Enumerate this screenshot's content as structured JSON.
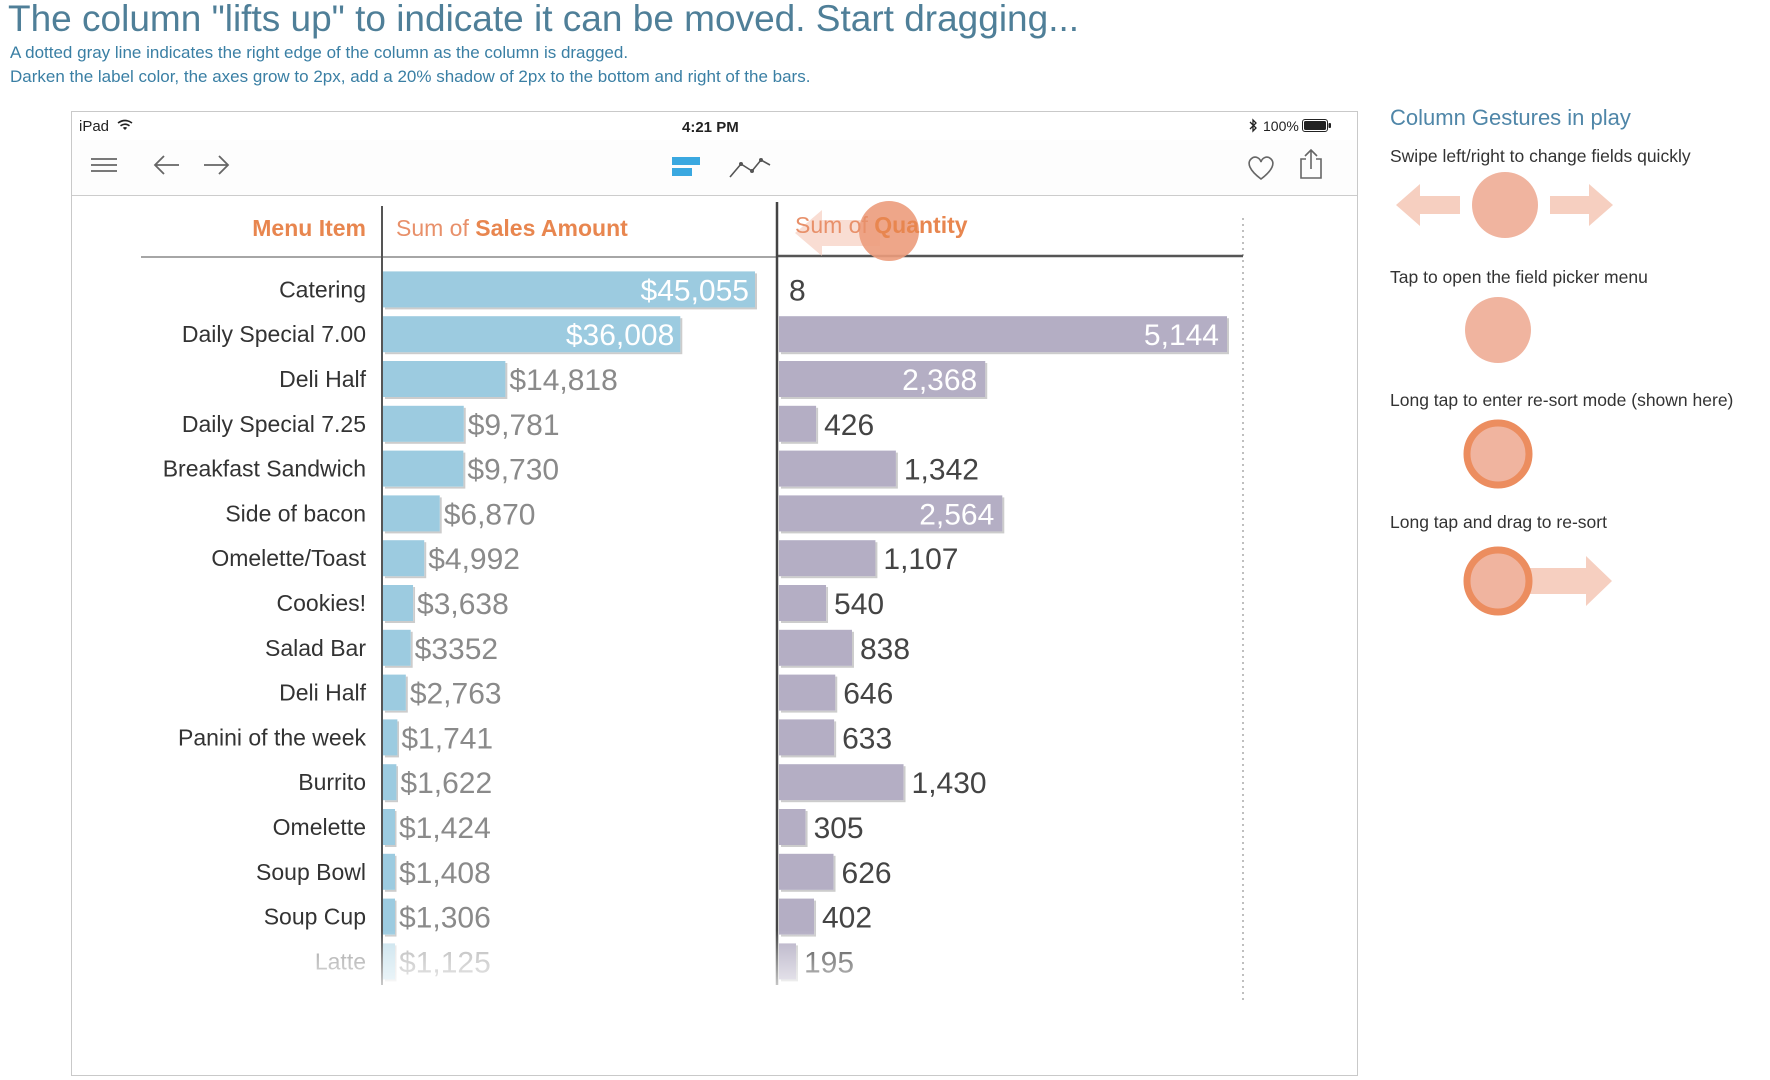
{
  "page": {
    "title": "The column \"lifts up\" to indicate it can be moved. Start dragging...",
    "subtitle_1": "A dotted gray line indicates the right edge of the column as the column is dragged.",
    "subtitle_2": "Darken the label color, the axes grow to 2px, add a 20% shadow of 2px to the bottom and right of the bars."
  },
  "statusbar": {
    "device": "iPad",
    "time": "4:21 PM",
    "battery": "100%"
  },
  "toolbar": {
    "icons": [
      "menu-icon",
      "back-arrow-icon",
      "forward-arrow-icon",
      "bar-chart-icon",
      "line-chart-icon",
      "heart-icon",
      "share-icon"
    ]
  },
  "chart_data": {
    "type": "table",
    "headers": {
      "dimension": "Menu Item",
      "measure1_prefix": "Sum of ",
      "measure1_name": "Sales Amount",
      "measure2_prefix": "Sum of ",
      "measure2_name": "Quantity"
    },
    "rows": [
      {
        "item": "Catering",
        "sales": 45055,
        "sales_label": "$45,055",
        "qty": 8,
        "qty_label": "8"
      },
      {
        "item": "Daily Special 7.00",
        "sales": 36008,
        "sales_label": "$36,008",
        "qty": 5144,
        "qty_label": "5,144"
      },
      {
        "item": "Deli Half",
        "sales": 14818,
        "sales_label": "$14,818",
        "qty": 2368,
        "qty_label": "2,368"
      },
      {
        "item": "Daily Special 7.25",
        "sales": 9781,
        "sales_label": "$9,781",
        "qty": 426,
        "qty_label": "426"
      },
      {
        "item": "Breakfast Sandwich",
        "sales": 9730,
        "sales_label": "$9,730",
        "qty": 1342,
        "qty_label": "1,342"
      },
      {
        "item": "Side of bacon",
        "sales": 6870,
        "sales_label": "$6,870",
        "qty": 2564,
        "qty_label": "2,564"
      },
      {
        "item": "Omelette/Toast",
        "sales": 4992,
        "sales_label": "$4,992",
        "qty": 1107,
        "qty_label": "1,107"
      },
      {
        "item": "Cookies!",
        "sales": 3638,
        "sales_label": "$3,638",
        "qty": 540,
        "qty_label": "540"
      },
      {
        "item": "Salad Bar",
        "sales": 3352,
        "sales_label": "$3352",
        "qty": 838,
        "qty_label": "838"
      },
      {
        "item": "Deli Half",
        "sales": 2763,
        "sales_label": "$2,763",
        "qty": 646,
        "qty_label": "646"
      },
      {
        "item": "Panini of the week",
        "sales": 1741,
        "sales_label": "$1,741",
        "qty": 633,
        "qty_label": "633"
      },
      {
        "item": "Burrito",
        "sales": 1622,
        "sales_label": "$1,622",
        "qty": 1430,
        "qty_label": "1,430"
      },
      {
        "item": "Omelette",
        "sales": 1424,
        "sales_label": "$1,424",
        "qty": 305,
        "qty_label": "305"
      },
      {
        "item": "Soup Bowl",
        "sales": 1408,
        "sales_label": "$1,408",
        "qty": 626,
        "qty_label": "626"
      },
      {
        "item": "Soup Cup",
        "sales": 1306,
        "sales_label": "$1,306",
        "qty": 402,
        "qty_label": "402"
      },
      {
        "item": "Latte",
        "sales": 1125,
        "sales_label": "$1,125",
        "qty": 195,
        "qty_label": "195"
      }
    ],
    "sales_max": 45055,
    "qty_max": 5144,
    "colors": {
      "sales_bar": "#9ccbe0",
      "qty_bar": "#b4aec4",
      "header_accent": "#e8864f",
      "header_text": "#e8906a"
    }
  },
  "gestures": {
    "title": "Column Gestures in play",
    "items": [
      {
        "label": "Swipe left/right to change fields quickly"
      },
      {
        "label": "Tap to open the field picker menu"
      },
      {
        "label": "Long tap to enter re-sort mode (shown here)"
      },
      {
        "label": "Long tap and drag to re-sort"
      }
    ],
    "colors": {
      "fill": "#f0b49f",
      "ring": "#ec8d5f",
      "arrow": "#f6cfc0"
    }
  }
}
